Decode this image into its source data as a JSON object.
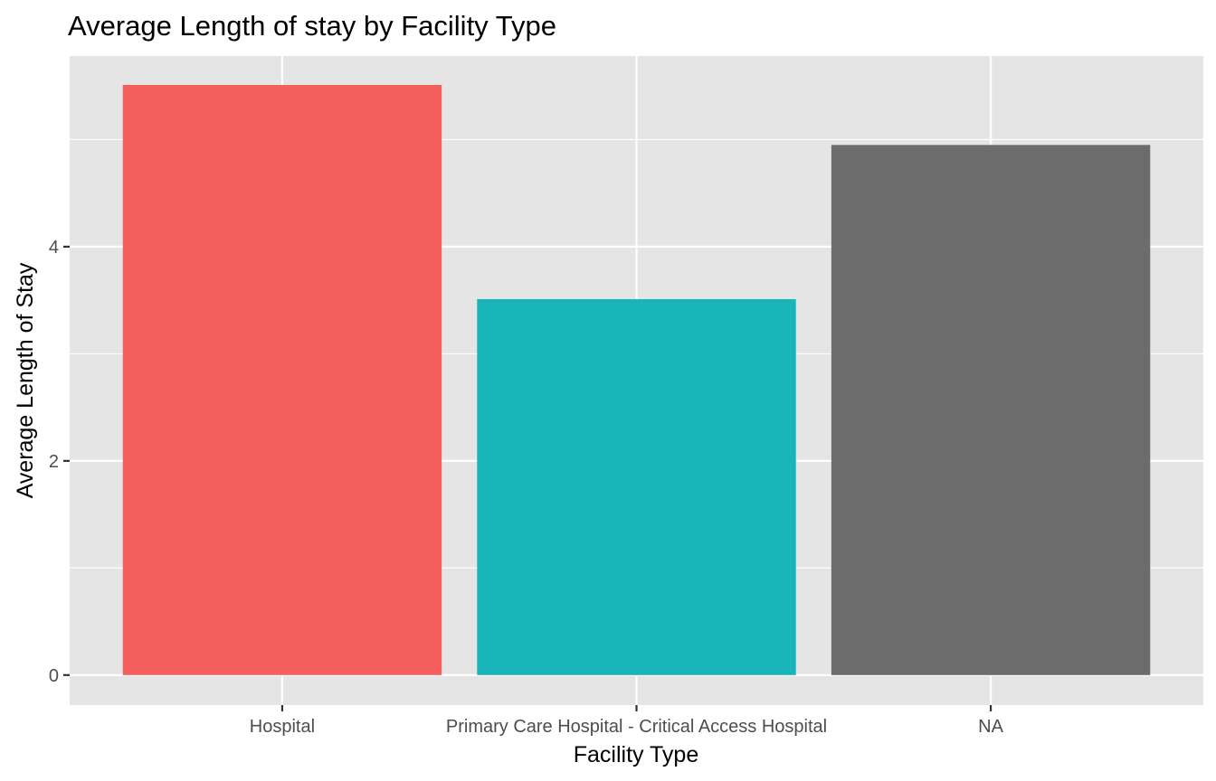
{
  "chart_data": {
    "type": "bar",
    "title": "Average Length of stay by Facility Type",
    "xlabel": "Facility Type",
    "ylabel": "Average Length of Stay",
    "categories": [
      "Hospital",
      "Primary Care Hospital - Critical Access Hospital",
      "NA"
    ],
    "values": [
      5.51,
      3.51,
      4.95
    ],
    "colors": [
      "#F4605B",
      "#19B4B8",
      "#6C6C6C"
    ],
    "ylim": [
      -0.28,
      5.78
    ],
    "y_ticks": [
      0,
      2,
      4
    ],
    "y_tick_labels": [
      "0",
      "2",
      "4"
    ],
    "grid": true,
    "legend": "none",
    "panel_background": "#E5E5E5",
    "grid_color": "#FFFFFF"
  }
}
